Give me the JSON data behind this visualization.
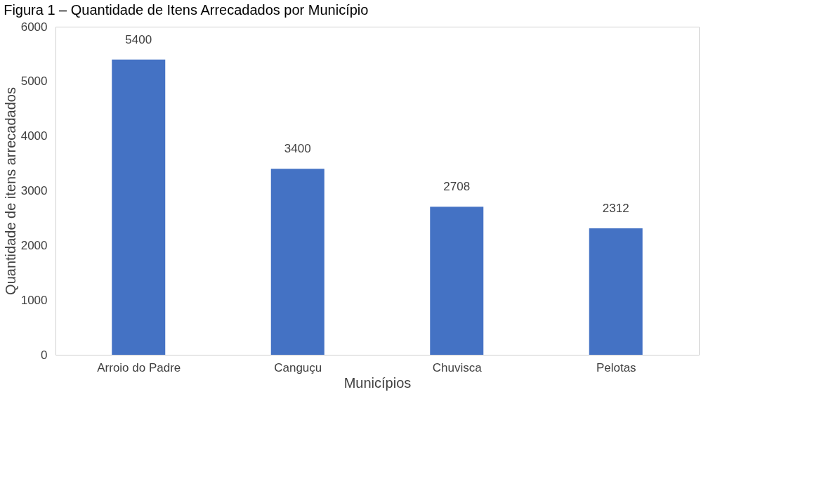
{
  "chart_data": {
    "type": "bar",
    "title": "Figura 1 – Quantidade de Itens Arrecadados por Município",
    "xlabel": "Municípios",
    "ylabel": "Quantidade de itens arrecadados",
    "categories": [
      "Arroio do Padre",
      "Canguçu",
      "Chuvisca",
      "Pelotas"
    ],
    "values": [
      5400,
      3400,
      2708,
      2312
    ],
    "color": "#4472c4",
    "ylim": [
      0,
      6000
    ],
    "yticks": [
      0,
      1000,
      2000,
      3000,
      4000,
      5000,
      6000
    ],
    "grid": false,
    "data_labels": true
  }
}
